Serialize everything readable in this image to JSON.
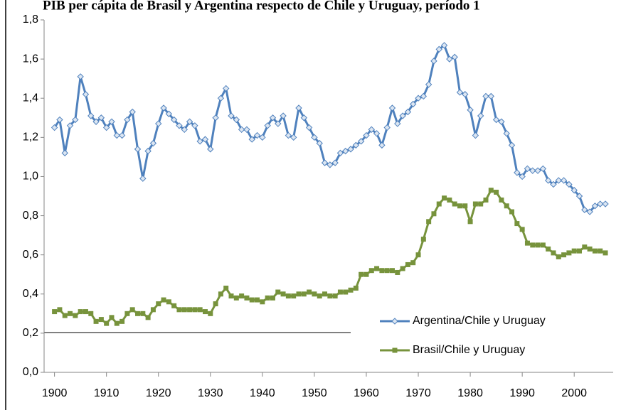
{
  "chart_data": {
    "type": "line",
    "title": "PIB per cápita de Brasil y Argentina respecto de Chile y Uruguay,  período 1",
    "x": [
      1900,
      1901,
      1902,
      1903,
      1904,
      1905,
      1906,
      1907,
      1908,
      1909,
      1910,
      1911,
      1912,
      1913,
      1914,
      1915,
      1916,
      1917,
      1918,
      1919,
      1920,
      1921,
      1922,
      1923,
      1924,
      1925,
      1926,
      1927,
      1928,
      1929,
      1930,
      1931,
      1932,
      1933,
      1934,
      1935,
      1936,
      1937,
      1938,
      1939,
      1940,
      1941,
      1942,
      1943,
      1944,
      1945,
      1946,
      1947,
      1948,
      1949,
      1950,
      1951,
      1952,
      1953,
      1954,
      1955,
      1956,
      1957,
      1958,
      1959,
      1960,
      1961,
      1962,
      1963,
      1964,
      1965,
      1966,
      1967,
      1968,
      1969,
      1970,
      1971,
      1972,
      1973,
      1974,
      1975,
      1976,
      1977,
      1978,
      1979,
      1980,
      1981,
      1982,
      1983,
      1984,
      1985,
      1986,
      1987,
      1988,
      1989,
      1990,
      1991,
      1992,
      1993,
      1994,
      1995,
      1996,
      1997,
      1998,
      1999,
      2000,
      2001,
      2002,
      2003,
      2004,
      2005,
      2006
    ],
    "series": [
      {
        "name": "Argentina/Chile y Uruguay",
        "color": "#4f81bd",
        "marker": "diamond",
        "values": [
          1.25,
          1.29,
          1.12,
          1.26,
          1.29,
          1.51,
          1.42,
          1.31,
          1.28,
          1.3,
          1.25,
          1.28,
          1.21,
          1.21,
          1.29,
          1.33,
          1.14,
          0.99,
          1.13,
          1.17,
          1.27,
          1.35,
          1.32,
          1.29,
          1.26,
          1.24,
          1.28,
          1.26,
          1.18,
          1.19,
          1.14,
          1.3,
          1.4,
          1.45,
          1.31,
          1.29,
          1.24,
          1.24,
          1.19,
          1.21,
          1.2,
          1.26,
          1.3,
          1.27,
          1.31,
          1.21,
          1.2,
          1.35,
          1.3,
          1.25,
          1.2,
          1.17,
          1.07,
          1.06,
          1.07,
          1.12,
          1.13,
          1.14,
          1.16,
          1.18,
          1.21,
          1.24,
          1.22,
          1.16,
          1.25,
          1.35,
          1.27,
          1.31,
          1.33,
          1.37,
          1.4,
          1.41,
          1.47,
          1.59,
          1.65,
          1.67,
          1.6,
          1.61,
          1.43,
          1.42,
          1.34,
          1.21,
          1.31,
          1.41,
          1.41,
          1.29,
          1.28,
          1.22,
          1.16,
          1.02,
          1.0,
          1.04,
          1.03,
          1.03,
          1.04,
          0.98,
          0.96,
          0.98,
          0.98,
          0.96,
          0.93,
          0.9,
          0.83,
          0.82,
          0.85,
          0.86,
          0.86
        ]
      },
      {
        "name": "Brasil/Chile y Uruguay",
        "color": "#77933c",
        "marker": "square",
        "values": [
          0.31,
          0.32,
          0.29,
          0.3,
          0.29,
          0.31,
          0.31,
          0.3,
          0.26,
          0.27,
          0.25,
          0.28,
          0.25,
          0.26,
          0.3,
          0.32,
          0.3,
          0.3,
          0.28,
          0.32,
          0.35,
          0.37,
          0.36,
          0.34,
          0.32,
          0.32,
          0.32,
          0.32,
          0.32,
          0.31,
          0.3,
          0.35,
          0.4,
          0.43,
          0.39,
          0.38,
          0.39,
          0.38,
          0.37,
          0.37,
          0.36,
          0.38,
          0.38,
          0.41,
          0.4,
          0.39,
          0.39,
          0.4,
          0.4,
          0.41,
          0.4,
          0.39,
          0.4,
          0.39,
          0.39,
          0.41,
          0.41,
          0.42,
          0.43,
          0.5,
          0.5,
          0.52,
          0.53,
          0.52,
          0.52,
          0.52,
          0.51,
          0.53,
          0.55,
          0.56,
          0.6,
          0.68,
          0.77,
          0.81,
          0.86,
          0.89,
          0.88,
          0.86,
          0.85,
          0.85,
          0.77,
          0.86,
          0.86,
          0.88,
          0.93,
          0.92,
          0.88,
          0.85,
          0.82,
          0.76,
          0.73,
          0.66,
          0.65,
          0.65,
          0.65,
          0.63,
          0.61,
          0.59,
          0.6,
          0.61,
          0.62,
          0.62,
          0.64,
          0.63,
          0.62,
          0.62,
          0.61
        ]
      }
    ],
    "xlim": [
      1898,
      2007.5
    ],
    "xticks": [
      1900,
      1910,
      1920,
      1930,
      1940,
      1950,
      1960,
      1970,
      1980,
      1990,
      2000
    ],
    "ylim": [
      0,
      1.8
    ],
    "yticks": [
      {
        "value": 0,
        "label": "0,0"
      },
      {
        "value": 0.2,
        "label": "0,2"
      },
      {
        "value": 0.4,
        "label": "0,4"
      },
      {
        "value": 0.6,
        "label": "0,6"
      },
      {
        "value": 0.8,
        "label": "0,8"
      },
      {
        "value": 1,
        "label": "1,0"
      },
      {
        "value": 1.2,
        "label": "1,2"
      },
      {
        "value": 1.4,
        "label": "1,4"
      },
      {
        "value": 1.6,
        "label": "1,6"
      },
      {
        "value": 1.8,
        "label": "1,8"
      }
    ],
    "legend": "lower right"
  }
}
